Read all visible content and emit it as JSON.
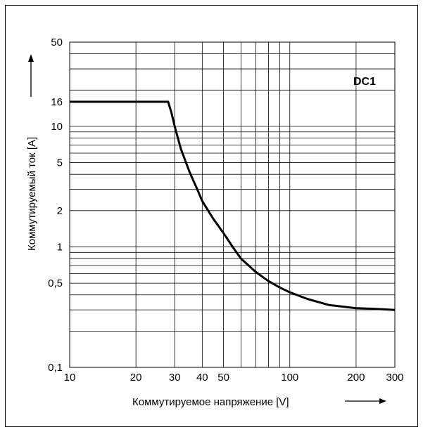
{
  "chart_data": {
    "type": "line",
    "title": "",
    "xlabel": "Коммутируемое напряжение [V]",
    "ylabel": "Коммутируемый ток [A]",
    "x_scale": "log",
    "y_scale": "log",
    "xlim": [
      10,
      300
    ],
    "ylim": [
      0.1,
      50
    ],
    "x_ticks": [
      {
        "value": 10,
        "label": "10"
      },
      {
        "value": 20,
        "label": "20"
      },
      {
        "value": 30,
        "label": "30"
      },
      {
        "value": 40,
        "label": "40"
      },
      {
        "value": 50,
        "label": "50"
      },
      {
        "value": 100,
        "label": "100"
      },
      {
        "value": 200,
        "label": "200"
      },
      {
        "value": 300,
        "label": "300"
      }
    ],
    "y_ticks": [
      {
        "value": 0.1,
        "label": "0,1"
      },
      {
        "value": 0.5,
        "label": "0,5"
      },
      {
        "value": 1,
        "label": "1"
      },
      {
        "value": 2,
        "label": "2"
      },
      {
        "value": 5,
        "label": "5"
      },
      {
        "value": 10,
        "label": "10"
      },
      {
        "value": 16,
        "label": "16"
      },
      {
        "value": 50,
        "label": "50"
      }
    ],
    "x_grid": [
      10,
      20,
      30,
      40,
      50,
      60,
      70,
      80,
      90,
      100,
      200,
      300
    ],
    "y_grid": [
      0.1,
      0.2,
      0.3,
      0.4,
      0.5,
      0.6,
      0.7,
      0.8,
      0.9,
      1,
      2,
      3,
      4,
      5,
      6,
      7,
      8,
      9,
      10,
      20,
      30,
      40,
      50
    ],
    "grid": true,
    "annotation": "DC1",
    "series": [
      {
        "x": [
          10,
          15,
          20,
          25,
          28,
          29,
          30,
          32,
          35,
          38,
          40,
          45,
          50,
          55,
          60,
          70,
          80,
          90,
          100,
          120,
          150,
          200,
          250,
          300
        ],
        "y": [
          16,
          16,
          16,
          16,
          16,
          13,
          10,
          6.5,
          4.2,
          3.0,
          2.4,
          1.7,
          1.3,
          1.0,
          0.8,
          0.62,
          0.52,
          0.46,
          0.42,
          0.37,
          0.33,
          0.31,
          0.305,
          0.3
        ]
      }
    ]
  }
}
